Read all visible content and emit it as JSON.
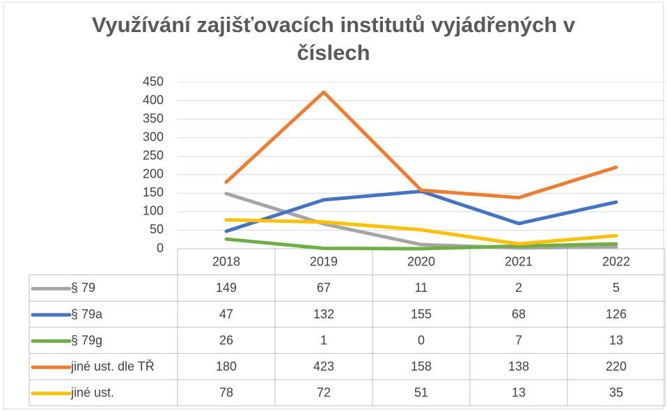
{
  "chart_data": {
    "type": "line",
    "title": "Využívání zajišťovacích institutů vyjádřených v číslech",
    "categories": [
      "2018",
      "2019",
      "2020",
      "2021",
      "2022"
    ],
    "series": [
      {
        "name": "§ 79",
        "color": "#a5a5a5",
        "values": [
          149,
          67,
          11,
          2,
          5
        ]
      },
      {
        "name": "§ 79a",
        "color": "#4472c4",
        "values": [
          47,
          132,
          155,
          68,
          126
        ]
      },
      {
        "name": "§ 79g",
        "color": "#70ad47",
        "values": [
          26,
          1,
          0,
          7,
          13
        ]
      },
      {
        "name": "jiné ust. dle TŘ",
        "color": "#ed7d31",
        "values": [
          180,
          423,
          158,
          138,
          220
        ]
      },
      {
        "name": "jiné ust.",
        "color": "#ffc000",
        "values": [
          78,
          72,
          51,
          13,
          35
        ]
      }
    ],
    "ylim": [
      0,
      450
    ],
    "yticks": [
      0,
      50,
      100,
      150,
      200,
      250,
      300,
      350,
      400,
      450
    ],
    "grid": true
  }
}
